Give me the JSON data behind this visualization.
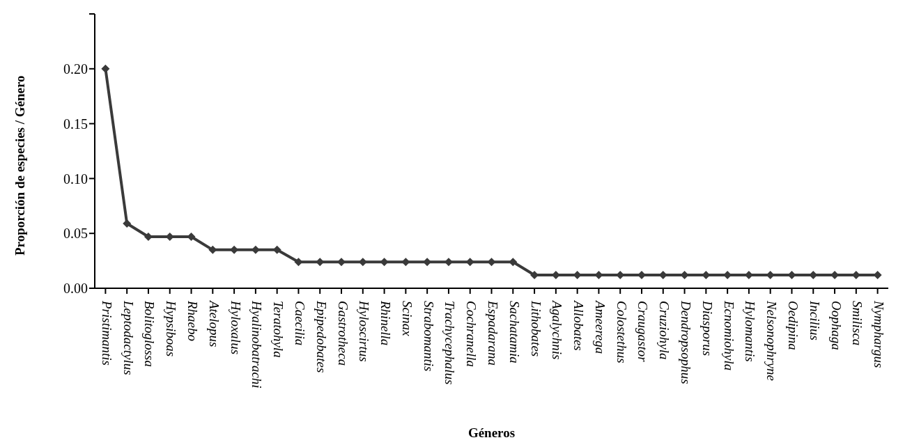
{
  "chart_data": {
    "type": "line",
    "xlabel": "Géneros",
    "ylabel": "Proporción de especies / Género",
    "categories": [
      "Pristimantis",
      "Leptodactylus",
      "Bolitoglossa",
      "Hypsiboas",
      "Rhaebo",
      "Atelopus",
      "Hyloxalus",
      "Hyalinobatrachi",
      "Teratohyla",
      "Caecilia",
      "Epipedobates",
      "Gastrotheca",
      "Hyloscirtus",
      "Rhinella",
      "Scinax",
      "Strabomantis",
      "Trachycephalus",
      "Cochranella",
      "Espadarana",
      "Sachatamia",
      "Lithobates",
      "Agalychnis",
      "Allobates",
      "Ameerega",
      "Colostethus",
      "Craugastor",
      "Cruziohyla",
      "Dendropsophus",
      "Diasporus",
      "Ecnomiohyla",
      "Hylomantis",
      "Nelsonophryne",
      "Oedipina",
      "Incilius",
      "Oophaga",
      "Smilisca",
      "Nymphargus"
    ],
    "series": [
      {
        "color": "#3a3a3a",
        "values": [
          0.2,
          0.059,
          0.047,
          0.047,
          0.047,
          0.035,
          0.035,
          0.035,
          0.035,
          0.024,
          0.024,
          0.024,
          0.024,
          0.024,
          0.024,
          0.024,
          0.024,
          0.024,
          0.024,
          0.024,
          0.012,
          0.012,
          0.012,
          0.012,
          0.012,
          0.012,
          0.012,
          0.012,
          0.012,
          0.012,
          0.012,
          0.012,
          0.012,
          0.012,
          0.012,
          0.012,
          0.012
        ]
      }
    ],
    "ylim": [
      0,
      0.25
    ],
    "yticks": [
      {
        "value": 0,
        "label": "0.00"
      },
      {
        "value": 0.05,
        "label": "0.05"
      },
      {
        "value": 0.1,
        "label": "0.10"
      },
      {
        "value": 0.15,
        "label": "0.15"
      },
      {
        "value": 0.2,
        "label": "0.20"
      },
      {
        "value": 0.25,
        "label": null
      }
    ],
    "grid": false,
    "legend": false,
    "marker": "diamond",
    "line_style": "solid"
  }
}
